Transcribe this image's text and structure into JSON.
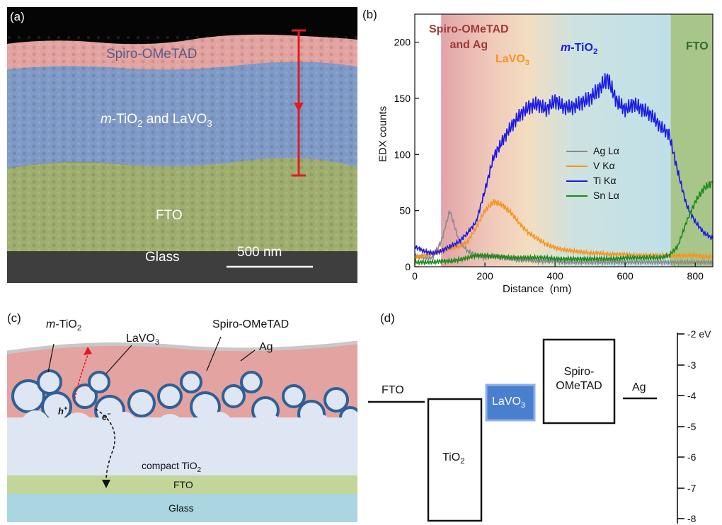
{
  "panel_a": {
    "label": "(a)",
    "layers": [
      "Spiro-OMeTAD",
      "m-TiO2 and LaVO3",
      "FTO",
      "Glass"
    ],
    "layer_spiro": "Spiro-OMeTAD",
    "layer_mid_prefix": "m",
    "layer_mid_a": "-TiO",
    "layer_mid_sub1": "2",
    "layer_mid_b": " and LaVO",
    "layer_mid_sub2": "3",
    "layer_fto": "FTO",
    "layer_glass": "Glass",
    "scale_bar": "500 nm",
    "colors": {
      "spiro": "#e3a3a0",
      "mid": "#7f9ac7",
      "fto": "#9fae6e",
      "glass": "#3e3e3e",
      "marker": "#e11b22"
    }
  },
  "panel_b": {
    "label": "(b)",
    "regions": {
      "spiro_line1": "Spiro-OMeTAD",
      "spiro_line2": "and Ag",
      "lavo3": "LaVO",
      "lavo3_sub": "3",
      "mtio2_prefix": "m",
      "mtio2": "-TiO",
      "mtio2_sub": "2",
      "fto": "FTO"
    },
    "legend": [
      "Ag Lα",
      "V Kα",
      "Ti Kα",
      "Sn Lα"
    ]
  },
  "chart_data": {
    "type": "line",
    "xlabel": "Distance  (nm)",
    "ylabel": "EDX counts",
    "xlim": [
      0,
      850
    ],
    "ylim": [
      0,
      225
    ],
    "xticks": [
      0,
      200,
      400,
      600,
      800
    ],
    "yticks": [
      0,
      50,
      100,
      150,
      200
    ],
    "legend_position": "right-middle",
    "x": [
      0,
      25,
      50,
      75,
      100,
      125,
      150,
      175,
      200,
      225,
      250,
      275,
      300,
      325,
      350,
      375,
      400,
      425,
      450,
      475,
      500,
      525,
      550,
      575,
      600,
      625,
      650,
      675,
      700,
      725,
      750,
      775,
      800,
      825,
      850
    ],
    "series": [
      {
        "name": "Ag Lα",
        "color": "#8a8a8a",
        "values": [
          10,
          8,
          8,
          22,
          50,
          24,
          14,
          10,
          8,
          10,
          8,
          7,
          6,
          6,
          5,
          5,
          5,
          4,
          4,
          4,
          4,
          4,
          4,
          4,
          4,
          4,
          4,
          4,
          4,
          4,
          4,
          4,
          4,
          4,
          4
        ]
      },
      {
        "name": "V Kα",
        "color": "#f7931e",
        "values": [
          8,
          10,
          12,
          14,
          16,
          18,
          22,
          35,
          50,
          58,
          55,
          48,
          38,
          30,
          25,
          20,
          17,
          15,
          14,
          13,
          12,
          12,
          11,
          11,
          11,
          10,
          10,
          10,
          10,
          10,
          10,
          10,
          10,
          9,
          9
        ]
      },
      {
        "name": "Ti Kα",
        "color": "#1a1ae6",
        "values": [
          18,
          14,
          12,
          14,
          18,
          22,
          30,
          40,
          68,
          98,
          112,
          125,
          135,
          142,
          145,
          140,
          148,
          142,
          142,
          146,
          150,
          158,
          168,
          148,
          140,
          145,
          140,
          135,
          125,
          118,
          85,
          55,
          40,
          30,
          25
        ]
      },
      {
        "name": "Sn Lα",
        "color": "#1a8a1a",
        "values": [
          4,
          4,
          4,
          5,
          5,
          6,
          8,
          10,
          10,
          9,
          9,
          8,
          8,
          8,
          8,
          8,
          7,
          7,
          7,
          7,
          7,
          7,
          7,
          7,
          8,
          8,
          8,
          8,
          8,
          10,
          18,
          40,
          58,
          70,
          75
        ]
      }
    ]
  },
  "panel_c": {
    "label": "(c)",
    "m_prefix": "m",
    "m_rest": "-TiO",
    "m_sub": "2",
    "lavo": "LaVO",
    "lavo_sub": "3",
    "spiro": "Spiro-OMeTAD",
    "ag": "Ag",
    "h": "h",
    "h_sup": "+",
    "e": "e",
    "e_sup": "−",
    "compact": "compact TiO",
    "compact_sub": "2",
    "fto": "FTO",
    "glass": "Glass",
    "colors": {
      "spiro": "#e3a3a0",
      "tio2": "#dde6f2",
      "lavo": "#2f5f96",
      "fto": "#c2d69a",
      "glass": "#a9d6e0",
      "ag": "#c8c8c8",
      "arrow": "#e11b22"
    }
  },
  "panel_d": {
    "label": "(d)",
    "fto": "FTO",
    "tio2": "TiO",
    "tio2_sub": "2",
    "lavo": "LaVO",
    "lavo_sub": "3",
    "spiro1": "Spiro-",
    "spiro2": "OMeTAD",
    "ag": "Ag",
    "axis_labels": [
      "-2 eV",
      "-3",
      "-4",
      "-5",
      "-6",
      "-7",
      "-8"
    ],
    "lavo_color": "#4a7fd0"
  }
}
